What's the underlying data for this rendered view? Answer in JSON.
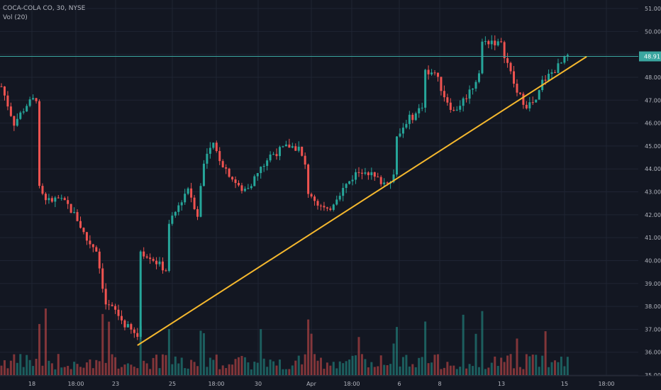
{
  "legend": {
    "symbol_line": "COCA-COLA CO, 30, NYSE",
    "volume_line": "Vol (20)"
  },
  "colors": {
    "background": "#131722",
    "grid": "#1f2433",
    "up": "#26a69a",
    "down": "#ef5350",
    "trendline": "#f5b82e",
    "price_line": "#3aa6a0",
    "axis_text": "#b2b5be"
  },
  "chart_data": {
    "type": "candlestick",
    "symbol": "COCA-COLA CO",
    "interval": "30",
    "exchange": "NYSE",
    "last_price": "48.91",
    "y_axis": {
      "range": [
        35.0,
        51.0
      ],
      "ticks": [
        "51.00",
        "50.00",
        "49.00",
        "48.00",
        "47.00",
        "46.00",
        "45.00",
        "44.00",
        "43.00",
        "42.00",
        "41.00",
        "40.00",
        "39.00",
        "38.00",
        "37.00",
        "36.00",
        "35.00"
      ]
    },
    "x_axis": {
      "ticks": [
        "18",
        "18:00",
        "23",
        "25",
        "18:00",
        "30",
        "Apr",
        "18:00",
        "6",
        "8",
        "13",
        "15",
        "18:00"
      ]
    },
    "grid": true,
    "volume_indicator": "Vol (20)",
    "price_path": [
      {
        "t": 0,
        "p": 47.6
      },
      {
        "t": 4,
        "p": 46.0
      },
      {
        "t": 8,
        "p": 46.8
      },
      {
        "t": 11,
        "p": 47.1
      },
      {
        "t": 12,
        "p": 43.1
      },
      {
        "t": 15,
        "p": 42.6
      },
      {
        "t": 18,
        "p": 42.7
      },
      {
        "t": 21,
        "p": 42.4
      },
      {
        "t": 24,
        "p": 41.8
      },
      {
        "t": 27,
        "p": 40.9
      },
      {
        "t": 30,
        "p": 40.5
      },
      {
        "t": 33,
        "p": 38.1
      },
      {
        "t": 36,
        "p": 37.8
      },
      {
        "t": 39,
        "p": 37.2
      },
      {
        "t": 42,
        "p": 36.8
      },
      {
        "t": 43,
        "p": 36.7
      },
      {
        "t": 44,
        "p": 40.4
      },
      {
        "t": 47,
        "p": 40.2
      },
      {
        "t": 50,
        "p": 39.8
      },
      {
        "t": 52,
        "p": 39.6
      },
      {
        "t": 53,
        "p": 41.5
      },
      {
        "t": 56,
        "p": 42.4
      },
      {
        "t": 59,
        "p": 43.2
      },
      {
        "t": 62,
        "p": 42.0
      },
      {
        "t": 64,
        "p": 44.4
      },
      {
        "t": 67,
        "p": 45.0
      },
      {
        "t": 70,
        "p": 44.2
      },
      {
        "t": 73,
        "p": 43.6
      },
      {
        "t": 76,
        "p": 43.0
      },
      {
        "t": 79,
        "p": 43.4
      },
      {
        "t": 82,
        "p": 44.0
      },
      {
        "t": 85,
        "p": 44.6
      },
      {
        "t": 88,
        "p": 44.8
      },
      {
        "t": 91,
        "p": 45.0
      },
      {
        "t": 94,
        "p": 44.9
      },
      {
        "t": 96,
        "p": 44.1
      },
      {
        "t": 97,
        "p": 43.0
      },
      {
        "t": 100,
        "p": 42.5
      },
      {
        "t": 103,
        "p": 42.1
      },
      {
        "t": 106,
        "p": 42.8
      },
      {
        "t": 109,
        "p": 43.3
      },
      {
        "t": 112,
        "p": 43.8
      },
      {
        "t": 115,
        "p": 44.0
      },
      {
        "t": 118,
        "p": 43.6
      },
      {
        "t": 121,
        "p": 43.4
      },
      {
        "t": 124,
        "p": 43.7
      },
      {
        "t": 125,
        "p": 45.3
      },
      {
        "t": 128,
        "p": 46.1
      },
      {
        "t": 131,
        "p": 46.4
      },
      {
        "t": 133,
        "p": 46.8
      },
      {
        "t": 134,
        "p": 48.3
      },
      {
        "t": 137,
        "p": 48.2
      },
      {
        "t": 140,
        "p": 47.2
      },
      {
        "t": 143,
        "p": 46.5
      },
      {
        "t": 146,
        "p": 47.0
      },
      {
        "t": 149,
        "p": 47.6
      },
      {
        "t": 151,
        "p": 48.2
      },
      {
        "t": 152,
        "p": 49.5
      },
      {
        "t": 155,
        "p": 49.6
      },
      {
        "t": 158,
        "p": 49.4
      },
      {
        "t": 160,
        "p": 48.6
      },
      {
        "t": 163,
        "p": 47.3
      },
      {
        "t": 166,
        "p": 46.8
      },
      {
        "t": 169,
        "p": 46.9
      },
      {
        "t": 171,
        "p": 47.8
      },
      {
        "t": 174,
        "p": 48.2
      },
      {
        "t": 177,
        "p": 48.6
      },
      {
        "t": 179,
        "p": 48.91
      }
    ],
    "trendline": {
      "start": {
        "t": 43,
        "p": 36.3
      },
      "end": {
        "t": 185,
        "p": 48.9
      }
    },
    "horizontal_line": {
      "p": 48.91
    }
  }
}
